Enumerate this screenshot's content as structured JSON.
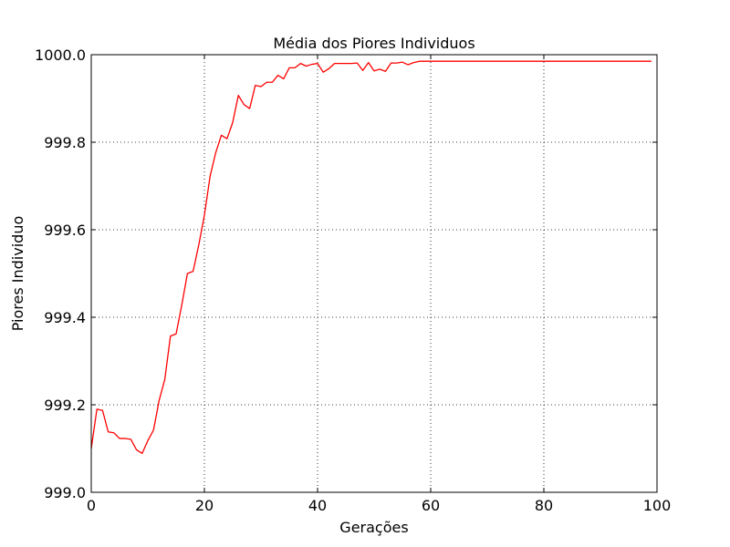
{
  "chart_data": {
    "type": "line",
    "title": "Média dos Piores Individuos",
    "xlabel": "Gerações",
    "ylabel": "Piores Individuo",
    "xlim": [
      0,
      100
    ],
    "ylim": [
      999.0,
      1000.0
    ],
    "xticks": [
      0,
      20,
      40,
      60,
      80,
      100
    ],
    "xtick_labels": [
      "0",
      "20",
      "40",
      "60",
      "80",
      "100"
    ],
    "yticks": [
      999.0,
      999.2,
      999.4,
      999.6,
      999.8,
      1000.0
    ],
    "ytick_labels": [
      "999.0",
      "999.2",
      "999.4",
      "999.6",
      "999.8",
      "1000.0"
    ],
    "grid": true,
    "series": [
      {
        "color": "#ff0000",
        "x": [
          0,
          1,
          2,
          3,
          4,
          5,
          6,
          7,
          8,
          9,
          10,
          11,
          12,
          13,
          14,
          15,
          16,
          17,
          18,
          19,
          20,
          21,
          22,
          23,
          24,
          25,
          26,
          27,
          28,
          29,
          30,
          31,
          32,
          33,
          34,
          35,
          36,
          37,
          38,
          39,
          40,
          41,
          42,
          43,
          44,
          45,
          46,
          47,
          48,
          49,
          50,
          51,
          52,
          53,
          54,
          55,
          56,
          57,
          58,
          59,
          60,
          61,
          62,
          63,
          64,
          65,
          66,
          67,
          68,
          69,
          70,
          71,
          72,
          73,
          74,
          75,
          76,
          77,
          78,
          79,
          80,
          81,
          82,
          83,
          84,
          85,
          86,
          87,
          88,
          89,
          90,
          91,
          92,
          93,
          94,
          95,
          96,
          97,
          98,
          99
        ],
        "y": [
          999.1,
          999.19,
          999.187,
          999.138,
          999.136,
          999.123,
          999.123,
          999.121,
          999.097,
          999.089,
          999.118,
          999.142,
          999.21,
          999.258,
          999.357,
          999.362,
          999.428,
          999.5,
          999.505,
          999.565,
          999.633,
          999.722,
          999.776,
          999.816,
          999.808,
          999.845,
          999.907,
          999.886,
          999.877,
          999.93,
          999.927,
          999.937,
          999.937,
          999.953,
          999.945,
          999.97,
          999.97,
          999.98,
          999.974,
          999.978,
          999.98,
          999.96,
          999.968,
          999.98,
          999.98,
          999.98,
          999.98,
          999.981,
          999.964,
          999.982,
          999.963,
          999.967,
          999.962,
          999.981,
          999.981,
          999.983,
          999.977,
          999.982,
          999.985,
          999.985,
          999.985,
          999.985,
          999.985,
          999.985,
          999.985,
          999.985,
          999.985,
          999.985,
          999.985,
          999.985,
          999.985,
          999.985,
          999.985,
          999.985,
          999.985,
          999.985,
          999.985,
          999.985,
          999.985,
          999.985,
          999.985,
          999.985,
          999.985,
          999.985,
          999.985,
          999.985,
          999.985,
          999.985,
          999.985,
          999.985,
          999.985,
          999.985,
          999.985,
          999.985,
          999.985,
          999.985,
          999.985,
          999.985,
          999.985,
          999.985
        ]
      }
    ]
  }
}
